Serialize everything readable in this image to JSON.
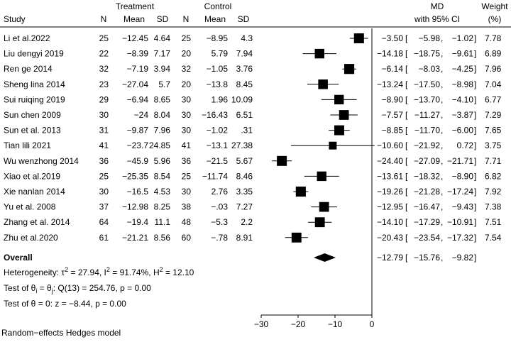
{
  "chart_data": {
    "type": "forest",
    "headers": {
      "study": "Study",
      "treatment": "Treatment",
      "control": "Control",
      "n": "N",
      "mean": "Mean",
      "sd": "SD",
      "md": "MD",
      "ci": "with 95% CI",
      "weight": "Weight",
      "weight_unit": "(%)"
    },
    "studies": [
      {
        "name": "Li et al.2022",
        "tn": "25",
        "tmean": "−12.45",
        "tsd": "4.64",
        "cn": "25",
        "cmean": "−8.95",
        "csd": "4.3",
        "md": -3.5,
        "lo": -5.98,
        "hi": -1.02,
        "md_t": "−3.50",
        "lo_t": "−5.98",
        "hi_t": "−1.02",
        "w": 7.78,
        "w_t": "7.78"
      },
      {
        "name": "Liu dengyi 2019",
        "tn": "22",
        "tmean": "−8.39",
        "tsd": "7.17",
        "cn": "20",
        "cmean": "5.79",
        "csd": "7.94",
        "md": -14.18,
        "lo": -18.75,
        "hi": -9.61,
        "md_t": "−14.18",
        "lo_t": "−18.75",
        "hi_t": "−9.61",
        "w": 6.89,
        "w_t": "6.89"
      },
      {
        "name": "Ren ge 2014",
        "tn": "32",
        "tmean": "−7.19",
        "tsd": "3.94",
        "cn": "32",
        "cmean": "−1.05",
        "csd": "3.76",
        "md": -6.14,
        "lo": -8.03,
        "hi": -4.25,
        "md_t": "−6.14",
        "lo_t": "−8.03",
        "hi_t": "−4.25",
        "w": 7.96,
        "w_t": "7.96"
      },
      {
        "name": "Sheng lina 2014",
        "tn": "23",
        "tmean": "−27.04",
        "tsd": "5.7",
        "cn": "20",
        "cmean": "−13.8",
        "csd": "8.45",
        "md": -13.24,
        "lo": -17.5,
        "hi": -8.98,
        "md_t": "−13.24",
        "lo_t": "−17.50",
        "hi_t": "−8.98",
        "w": 7.04,
        "w_t": "7.04"
      },
      {
        "name": "Sui ruiqing 2019",
        "tn": "29",
        "tmean": "−6.94",
        "tsd": "8.65",
        "cn": "30",
        "cmean": "1.96",
        "csd": "10.09",
        "md": -8.9,
        "lo": -13.7,
        "hi": -4.1,
        "md_t": "−8.90",
        "lo_t": "−13.70",
        "hi_t": "−4.10",
        "w": 6.77,
        "w_t": "6.77"
      },
      {
        "name": "Sun chen 2009",
        "tn": "30",
        "tmean": "−24",
        "tsd": "8.04",
        "cn": "30",
        "cmean": "−16.43",
        "csd": "6.51",
        "md": -7.57,
        "lo": -11.27,
        "hi": -3.87,
        "md_t": "−7.57",
        "lo_t": "−11.27",
        "hi_t": "−3.87",
        "w": 7.29,
        "w_t": "7.29"
      },
      {
        "name": "Sun et al. 2013",
        "tn": "31",
        "tmean": "−9.87",
        "tsd": "7.96",
        "cn": "30",
        "cmean": "−1.02",
        "csd": ".31",
        "md": -8.85,
        "lo": -11.7,
        "hi": -6.0,
        "md_t": "−8.85",
        "lo_t": "−11.70",
        "hi_t": "−6.00",
        "w": 7.65,
        "w_t": "7.65"
      },
      {
        "name": "Tian lili 2021",
        "tn": "41",
        "tmean": "−23.7",
        "tsd": "24.85",
        "cn": "41",
        "cmean": "−13.1",
        "csd": "27.38",
        "md": -10.6,
        "lo": -21.92,
        "hi": 0.72,
        "md_t": "−10.60",
        "lo_t": "−21.92",
        "hi_t": "0.72",
        "w": 3.75,
        "w_t": "3.75"
      },
      {
        "name": "Wu wenzhong 2014",
        "tn": "36",
        "tmean": "−45.9",
        "tsd": "5.96",
        "cn": "36",
        "cmean": "−21.5",
        "csd": "5.67",
        "md": -24.4,
        "lo": -27.09,
        "hi": -21.71,
        "md_t": "−24.40",
        "lo_t": "−27.09",
        "hi_t": "−21.71",
        "w": 7.71,
        "w_t": "7.71"
      },
      {
        "name": "Xiao et al.2019",
        "tn": "25",
        "tmean": "−25.35",
        "tsd": "8.54",
        "cn": "25",
        "cmean": "−11.74",
        "csd": "8.46",
        "md": -13.61,
        "lo": -18.32,
        "hi": -8.9,
        "md_t": "−13.61",
        "lo_t": "−18.32",
        "hi_t": "−8.90",
        "w": 6.82,
        "w_t": "6.82"
      },
      {
        "name": "Xie nanlan 2014",
        "tn": "30",
        "tmean": "−16.5",
        "tsd": "4.53",
        "cn": "30",
        "cmean": "2.76",
        "csd": "3.35",
        "md": -19.26,
        "lo": -21.28,
        "hi": -17.24,
        "md_t": "−19.26",
        "lo_t": "−21.28",
        "hi_t": "−17.24",
        "w": 7.92,
        "w_t": "7.92"
      },
      {
        "name": "Yu et al. 2008",
        "tn": "37",
        "tmean": "−12.98",
        "tsd": "8.25",
        "cn": "38",
        "cmean": "−.03",
        "csd": "7.27",
        "md": -12.95,
        "lo": -16.47,
        "hi": -9.43,
        "md_t": "−12.95",
        "lo_t": "−16.47",
        "hi_t": "−9.43",
        "w": 7.38,
        "w_t": "7.38"
      },
      {
        "name": "Zhang et al. 2014",
        "tn": "64",
        "tmean": "−19.4",
        "tsd": "11.1",
        "cn": "48",
        "cmean": "−5.3",
        "csd": "2.2",
        "md": -14.1,
        "lo": -17.29,
        "hi": -10.91,
        "md_t": "−14.10",
        "lo_t": "−17.29",
        "hi_t": "−10.91",
        "w": 7.51,
        "w_t": "7.51"
      },
      {
        "name": "Zhu et al.2020",
        "tn": "61",
        "tmean": "−21.21",
        "tsd": "8.56",
        "cn": "60",
        "cmean": "−.78",
        "csd": "8.91",
        "md": -20.43,
        "lo": -23.54,
        "hi": -17.32,
        "md_t": "−20.43",
        "lo_t": "−23.54",
        "hi_t": "−17.32",
        "w": 7.54,
        "w_t": "7.54"
      }
    ],
    "overall": {
      "label": "Overall",
      "md": -12.79,
      "lo": -15.76,
      "hi": -9.82,
      "md_t": "−12.79",
      "lo_t": "−15.76",
      "hi_t": "−9.82"
    },
    "heterogeneity": {
      "label": "Heterogeneity: ",
      "tau": "τ",
      "tau_val": " = 27.94, ",
      "i": "I",
      "i_val": " = 91.74%, ",
      "h": "H",
      "h_val": " = 12.10",
      "sup": "2"
    },
    "test_equal": {
      "a": "Test of θ",
      "sub_i": "i",
      "b": " = θ",
      "sub_j": "j",
      "c": ": Q(13) = 254.76, p = 0.00"
    },
    "test_zero": "Test of θ = 0: z = −8.44, p = 0.00",
    "x_axis": {
      "ticks": [
        -30,
        -20,
        -10,
        0
      ],
      "tick_labels": [
        "−30",
        "−20",
        "−10",
        "0"
      ],
      "range": [
        -30,
        0
      ]
    },
    "model_note": "Random−effects Hedges model"
  }
}
